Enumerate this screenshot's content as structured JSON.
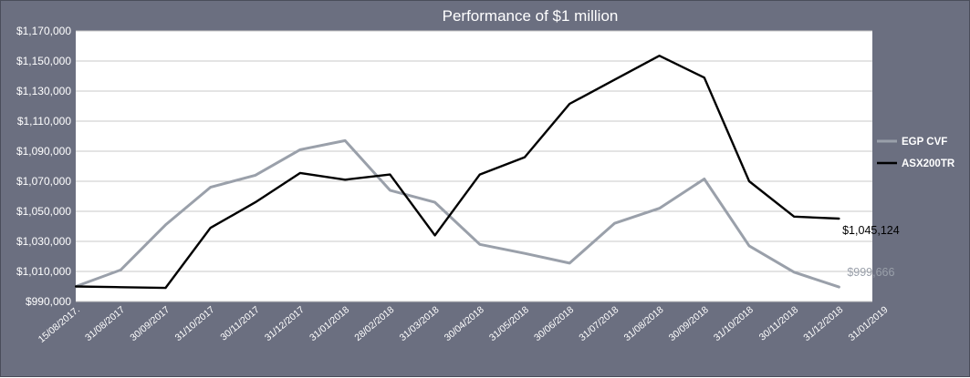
{
  "chart_data": {
    "type": "line",
    "title": "Performance of $1 million",
    "xlabel": "",
    "ylabel": "",
    "x": [
      "15/08/2017",
      "31/08/2017",
      "30/09/2017",
      "31/10/2017",
      "30/11/2017",
      "31/12/2017",
      "31/01/2018",
      "28/02/2018",
      "31/03/2018",
      "30/04/2018",
      "31/05/2018",
      "30/06/2018",
      "31/07/2018",
      "31/08/2018",
      "30/09/2018",
      "31/10/2018",
      "30/11/2018",
      "31/12/2018",
      "31/01/2019"
    ],
    "x_tick_labels": [
      "15/08/2017.",
      "31/08/2017",
      "30/09/2017",
      "31/10/2017",
      "30/11/2017",
      "31/12/2017",
      "31/01/2018",
      "28/02/2018",
      "31/03/2018",
      "30/04/2018",
      "31/05/2018",
      "30/06/2018",
      "31/07/2018",
      "31/08/2018",
      "30/09/2018",
      "31/10/2018",
      "30/11/2018",
      "31/12/2018",
      "31/01/2019"
    ],
    "y_ticks": [
      990000,
      1010000,
      1030000,
      1050000,
      1070000,
      1090000,
      1110000,
      1130000,
      1150000,
      1170000
    ],
    "y_tick_labels": [
      "$990,000",
      "$1,010,000",
      "$1,030,000",
      "$1,050,000",
      "$1,070,000",
      "$1,090,000",
      "$1,110,000",
      "$1,130,000",
      "$1,150,000",
      "$1,170,000"
    ],
    "ylim": [
      990000,
      1170000
    ],
    "grid": true,
    "legend_position": "right",
    "series": [
      {
        "name": "EGP CVF",
        "color": "#9aa0aa",
        "values": [
          1000000,
          1011000,
          1041000,
          1066000,
          1074000,
          1091000,
          1097000,
          1064000,
          1056000,
          1028000,
          1022000,
          1015500,
          1042000,
          1052000,
          1071500,
          1027000,
          1009500,
          999666,
          null
        ]
      },
      {
        "name": "ASX200TR",
        "color": "#000000",
        "values": [
          1000000,
          999500,
          999000,
          1039000,
          1056000,
          1075500,
          1071000,
          1074500,
          1034000,
          1074500,
          1086000,
          1121500,
          1137500,
          1153500,
          1139000,
          1070000,
          1046500,
          1045124,
          null
        ]
      }
    ],
    "annotations": [
      {
        "series": "ASX200TR",
        "text": "$1,045,124",
        "color": "#000000"
      },
      {
        "series": "EGP CVF",
        "text": "$999,666",
        "color": "#9aa0aa"
      }
    ]
  }
}
